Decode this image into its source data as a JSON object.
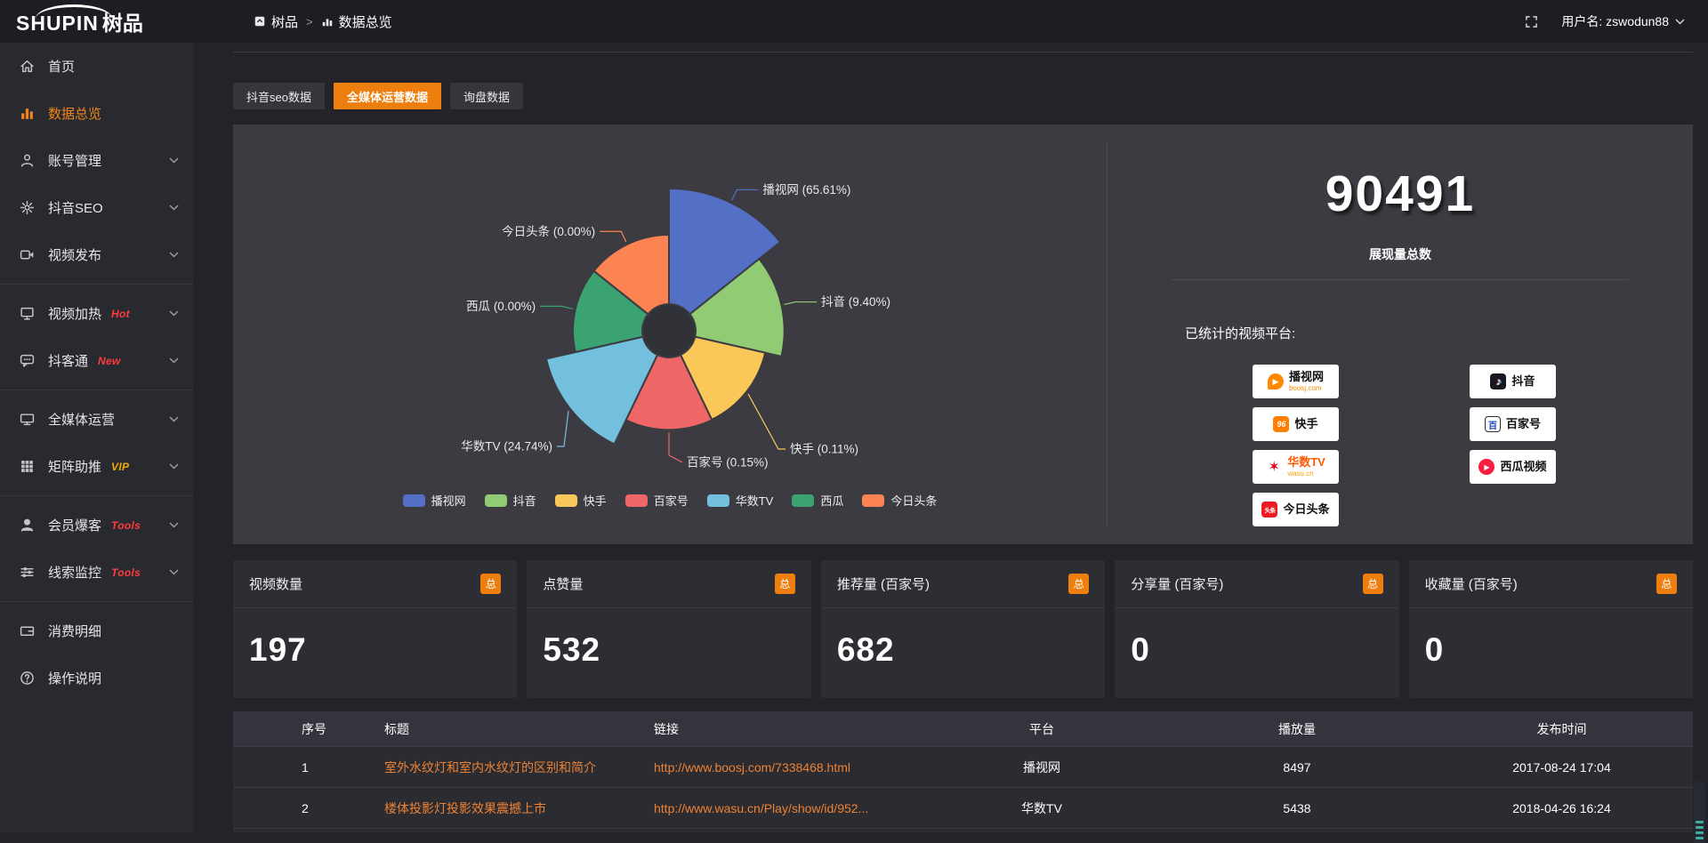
{
  "colors": {
    "accent_orange": "#ee7e0e",
    "sidebar_active_orange": "#f08519",
    "link_orange": "#ee8233",
    "badge_red": "#ff3c3c",
    "badge_gold": "#efad02",
    "panel_bg": "#3b3b41",
    "chart_palette": [
      "#5470c6",
      "#91cc75",
      "#fac858",
      "#ee6666",
      "#73c0de",
      "#3ba272",
      "#fc8452"
    ]
  },
  "topbar": {
    "logo_main": "SHUPIN",
    "logo_suffix": "树品",
    "breadcrumb": [
      {
        "label": "树品"
      },
      {
        "label": "数据总览"
      }
    ],
    "username": "用户名: zswodun88"
  },
  "sidebar": {
    "items": [
      {
        "icon": "home-icon",
        "label": "首页"
      },
      {
        "icon": "bar-chart-icon",
        "label": "数据总览",
        "active": true
      },
      {
        "icon": "user-icon",
        "label": "账号管理",
        "chevron": true
      },
      {
        "icon": "gear-icon",
        "label": "抖音SEO",
        "chevron": true
      },
      {
        "icon": "video-camera-icon",
        "label": "视频发布",
        "chevron": true,
        "divider_after": true
      },
      {
        "icon": "screen-icon",
        "label": "视频加热",
        "badge": "Hot",
        "badge_color": "red",
        "chevron": true
      },
      {
        "icon": "chat-icon",
        "label": "抖客通",
        "badge": "New",
        "badge_color": "red",
        "chevron": true,
        "divider_after": true
      },
      {
        "icon": "monitor-icon",
        "label": "全媒体运营",
        "chevron": true
      },
      {
        "icon": "grid-icon",
        "label": "矩阵助推",
        "badge": "VIP",
        "badge_color": "gold",
        "chevron": true,
        "divider_after": true
      },
      {
        "icon": "member-icon",
        "label": "会员爆客",
        "badge": "Tools",
        "badge_color": "red",
        "chevron": true
      },
      {
        "icon": "sliders-icon",
        "label": "线索监控",
        "badge": "Tools",
        "badge_color": "red",
        "chevron": true,
        "divider_after": true
      },
      {
        "icon": "wallet-icon",
        "label": "消费明细"
      },
      {
        "icon": "question-icon",
        "label": "操作说明"
      }
    ]
  },
  "tabs": [
    {
      "label": "抖音seo数据",
      "active": false
    },
    {
      "label": "全媒体运营数据",
      "active": true
    },
    {
      "label": "询盘数据",
      "active": false
    }
  ],
  "chart_data": {
    "type": "pie",
    "subtype": "nightingale-rose-donut",
    "categories": [
      "播视网",
      "抖音",
      "快手",
      "百家号",
      "华数TV",
      "西瓜",
      "今日头条"
    ],
    "values": [
      65.61,
      9.4,
      0.11,
      0.15,
      24.74,
      0.0,
      0.0
    ],
    "unit": "%",
    "labels": [
      "播视网 (65.61%)",
      "抖音 (9.40%)",
      "快手 (0.11%)",
      "百家号 (0.15%)",
      "华数TV (24.74%)",
      "西瓜 (0.00%)",
      "今日头条 (0.00%)"
    ],
    "colors": [
      "#5470c6",
      "#91cc75",
      "#fac858",
      "#ee6666",
      "#73c0de",
      "#3ba272",
      "#fc8452"
    ],
    "legend": [
      "播视网",
      "抖音",
      "快手",
      "百家号",
      "华数TV",
      "西瓜",
      "今日头条"
    ],
    "legend_position": "bottom"
  },
  "summary": {
    "total_value": "90491",
    "total_label": "展现量总数",
    "platforms_label": "已统计的视频平台:",
    "platforms": [
      {
        "name": "播视网",
        "sub": "boosj.com",
        "mark": "boosj"
      },
      {
        "name": "抖音",
        "sub": "",
        "mark": "douyin"
      },
      {
        "name": "快手",
        "sub": "",
        "mark": "kuaishou"
      },
      {
        "name": "百家号",
        "sub": "",
        "mark": "baijia"
      },
      {
        "name": "华数TV",
        "sub": "wasu.cn",
        "mark": "wasu"
      },
      {
        "name": "西瓜视频",
        "sub": "",
        "mark": "xigua"
      },
      {
        "name": "今日头条",
        "sub": "",
        "mark": "toutiao"
      }
    ]
  },
  "cards": [
    {
      "title": "视频数量",
      "badge": "总",
      "value": "197"
    },
    {
      "title": "点赞量",
      "badge": "总",
      "value": "532"
    },
    {
      "title": "推荐量 (百家号)",
      "badge": "总",
      "value": "682"
    },
    {
      "title": "分享量 (百家号)",
      "badge": "总",
      "value": "0"
    },
    {
      "title": "收藏量 (百家号)",
      "badge": "总",
      "value": "0"
    }
  ],
  "table": {
    "headers": [
      "序号",
      "标题",
      "链接",
      "平台",
      "播放量",
      "发布时间"
    ],
    "rows": [
      [
        "1",
        "室外水纹灯和室内水纹灯的区别和简介",
        "http://www.boosj.com/7338468.html",
        "播视网",
        "8497",
        "2017-08-24 17:04"
      ],
      [
        "2",
        "楼体投影灯投影效果震撼上市",
        "http://www.wasu.cn/Play/show/id/952...",
        "华数TV",
        "5438",
        "2018-04-26 16:24"
      ]
    ]
  }
}
